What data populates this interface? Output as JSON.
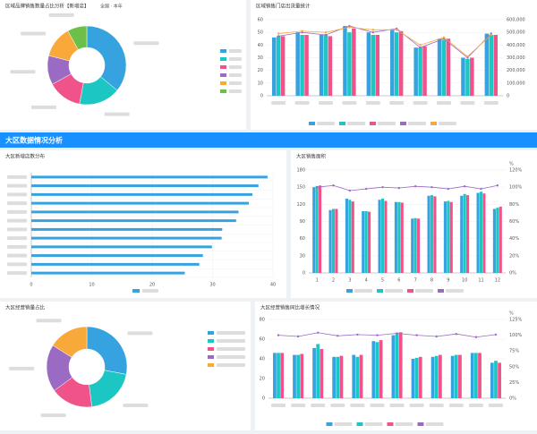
{
  "banner": "大区数据情况分析",
  "chart_data": [
    {
      "type": "pie",
      "title": "区域品牌销售数量占比分析【新增店】",
      "subtitle": "全国 · 本年",
      "values": [
        36,
        17,
        14,
        12,
        13,
        8
      ],
      "colors": [
        "#36a3e0",
        "#1cc7c3",
        "#f0528a",
        "#9b6bc4",
        "#f8a93a",
        "#6cc04a"
      ]
    },
    {
      "type": "bar",
      "title": "区域销售门店出货量统计",
      "ylim": [
        0,
        60
      ],
      "yticks": [
        0,
        10,
        20,
        30,
        40,
        50,
        60
      ],
      "y2lim": [
        0,
        600000
      ],
      "y2ticks": [
        0,
        {
          "value": 100000,
          "label": "100,000"
        },
        {
          "value": 200000,
          "label": "200,000"
        },
        {
          "value": 300000,
          "label": "300,000"
        },
        {
          "value": 400000,
          "label": "400,000"
        },
        {
          "value": 500000,
          "label": "500,000"
        },
        {
          "value": 600000,
          "label": "600,000"
        }
      ],
      "grid": true,
      "series": [
        {
          "type": "bar",
          "color": "#36a3e0",
          "values": [
            46,
            50,
            48,
            55,
            50,
            52,
            38,
            45,
            30,
            49
          ]
        },
        {
          "type": "bar",
          "color": "#1cc7c3",
          "values": [
            47,
            48,
            48,
            50,
            48,
            50,
            38,
            44,
            29,
            48
          ]
        },
        {
          "type": "bar",
          "color": "#f0528a",
          "values": [
            47,
            48,
            47,
            53,
            48,
            51,
            39,
            45,
            30,
            48
          ]
        },
        {
          "type": "line",
          "axis": "y2",
          "color": "#9b6bc4",
          "values": [
            470000,
            500000,
            480000,
            550000,
            500000,
            530000,
            380000,
            450000,
            300000,
            490000
          ]
        },
        {
          "type": "line",
          "axis": "y2",
          "color": "#f8a93a",
          "values": [
            490000,
            510000,
            500000,
            540000,
            520000,
            520000,
            400000,
            460000,
            310000,
            480000
          ]
        }
      ]
    },
    {
      "type": "hbar",
      "title": "大区新增店数分布",
      "xlim": [
        0,
        40
      ],
      "xticks": [
        0,
        10,
        20,
        30,
        40
      ],
      "grid": true,
      "color": "#36a3e0",
      "values": [
        39.1,
        37.6,
        36.6,
        36,
        34.3,
        33.9,
        31.6,
        31.5,
        29.9,
        28.4,
        27.8,
        25.4
      ]
    },
    {
      "type": "bar",
      "title": "大区销售面积",
      "categories": [
        "1",
        "2",
        "3",
        "4",
        "5",
        "6",
        "7",
        "8",
        "9",
        "10",
        "11",
        "12"
      ],
      "ylim": [
        0,
        180
      ],
      "yticks": [
        0,
        30,
        60,
        90,
        120,
        150,
        180
      ],
      "y2lim": [
        0,
        120
      ],
      "y2label": "%",
      "y2ticks": [
        {
          "value": 0,
          "label": "0%"
        },
        {
          "value": 20,
          "label": "20%"
        },
        {
          "value": 40,
          "label": "40%"
        },
        {
          "value": 60,
          "label": "60%"
        },
        {
          "value": 80,
          "label": "80%"
        },
        {
          "value": 100,
          "label": "100%"
        },
        {
          "value": 120,
          "label": "120%"
        }
      ],
      "grid": true,
      "series": [
        {
          "type": "bar",
          "color": "#36a3e0",
          "values": [
            150,
            110,
            130,
            108,
            128,
            124,
            95,
            135,
            125,
            135,
            140,
            112
          ]
        },
        {
          "type": "bar",
          "color": "#1cc7c3",
          "values": [
            152,
            112,
            128,
            108,
            130,
            124,
            96,
            136,
            126,
            138,
            142,
            114
          ]
        },
        {
          "type": "bar",
          "color": "#f0528a",
          "values": [
            153,
            112,
            125,
            107,
            126,
            123,
            95,
            134,
            124,
            136,
            139,
            116
          ]
        },
        {
          "type": "line",
          "axis": "y2",
          "color": "#9b6bc4",
          "values": [
            100,
            102,
            96,
            98,
            100,
            99,
            101,
            100,
            98,
            101,
            98,
            102
          ]
        }
      ]
    },
    {
      "type": "pie",
      "title": "大区经营销量占比",
      "values": [
        28,
        20,
        17,
        19,
        16
      ],
      "colors": [
        "#36a3e0",
        "#1cc7c3",
        "#f0528a",
        "#9b6bc4",
        "#f8a93a"
      ]
    },
    {
      "type": "bar",
      "title": "大区经营销售同比增长情况",
      "ylim": [
        0,
        80
      ],
      "yticks": [
        0,
        20,
        40,
        60,
        80
      ],
      "y2lim": [
        0,
        125
      ],
      "y2label": "%",
      "y2ticks": [
        {
          "value": 0,
          "label": "0%"
        },
        {
          "value": 25,
          "label": "25%"
        },
        {
          "value": 50,
          "label": "50%"
        },
        {
          "value": 75,
          "label": "75%"
        },
        {
          "value": 100,
          "label": "100%"
        },
        {
          "value": 125,
          "label": "125%"
        }
      ],
      "grid": true,
      "series": [
        {
          "type": "bar",
          "color": "#36a3e0",
          "values": [
            46,
            44,
            51,
            42,
            44,
            58,
            64,
            40,
            42,
            43,
            46,
            36
          ]
        },
        {
          "type": "bar",
          "color": "#1cc7c3",
          "values": [
            46,
            44,
            55,
            42,
            42,
            57,
            66,
            41,
            43,
            44,
            46,
            38
          ]
        },
        {
          "type": "bar",
          "color": "#f0528a",
          "values": [
            46,
            45,
            50,
            43,
            44,
            59,
            67,
            42,
            44,
            44,
            46,
            36
          ]
        },
        {
          "type": "line",
          "axis": "y2",
          "color": "#9b6bc4",
          "values": [
            100,
            98,
            104,
            99,
            101,
            100,
            103,
            100,
            98,
            102,
            97,
            101
          ]
        }
      ]
    }
  ]
}
